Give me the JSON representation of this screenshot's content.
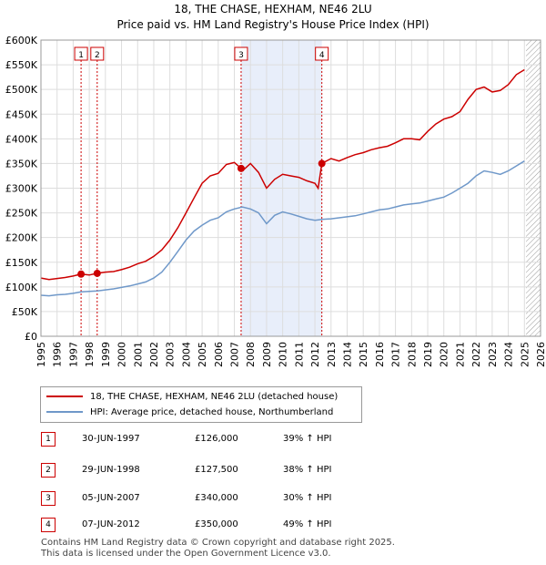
{
  "header": {
    "title": "18, THE CHASE, HEXHAM, NE46 2LU",
    "subtitle": "Price paid vs. HM Land Registry's House Price Index (HPI)"
  },
  "chart_data": {
    "type": "line",
    "title": "18, THE CHASE, HEXHAM, NE46 2LU",
    "subtitle": "Price paid vs. HM Land Registry's House Price Index (HPI)",
    "xlabel": "",
    "ylabel": "",
    "xlim": [
      1995,
      2026
    ],
    "ylim": [
      0,
      600000
    ],
    "x_ticks": [
      "1995",
      "1996",
      "1997",
      "1998",
      "1999",
      "2000",
      "2001",
      "2002",
      "2003",
      "2004",
      "2005",
      "2006",
      "2007",
      "2008",
      "2009",
      "2010",
      "2011",
      "2012",
      "2013",
      "2014",
      "2015",
      "2016",
      "2017",
      "2018",
      "2019",
      "2020",
      "2021",
      "2022",
      "2023",
      "2024",
      "2025",
      "2026"
    ],
    "y_ticks": [
      {
        "value": 0,
        "label": "£0"
      },
      {
        "value": 50000,
        "label": "£50K"
      },
      {
        "value": 100000,
        "label": "£100K"
      },
      {
        "value": 150000,
        "label": "£150K"
      },
      {
        "value": 200000,
        "label": "£200K"
      },
      {
        "value": 250000,
        "label": "£250K"
      },
      {
        "value": 300000,
        "label": "£300K"
      },
      {
        "value": 350000,
        "label": "£350K"
      },
      {
        "value": 400000,
        "label": "£400K"
      },
      {
        "value": 450000,
        "label": "£450K"
      },
      {
        "value": 500000,
        "label": "£500K"
      },
      {
        "value": 550000,
        "label": "£550K"
      },
      {
        "value": 600000,
        "label": "£600K"
      }
    ],
    "grid": true,
    "shaded_region": [
      2007.42,
      2012.43
    ],
    "hatched_from": 2025.1,
    "series": [
      {
        "name": "18, THE CHASE, HEXHAM, NE46 2LU (detached house)",
        "color": "#cc0000",
        "x": [
          1995.0,
          1995.5,
          1996.0,
          1996.5,
          1997.0,
          1997.49,
          1998.0,
          1998.49,
          1999.0,
          1999.5,
          2000.0,
          2000.5,
          2001.0,
          2001.5,
          2002.0,
          2002.5,
          2003.0,
          2003.5,
          2004.0,
          2004.5,
          2005.0,
          2005.5,
          2006.0,
          2006.5,
          2007.0,
          2007.42,
          2007.6,
          2008.0,
          2008.5,
          2009.0,
          2009.5,
          2010.0,
          2010.5,
          2011.0,
          2011.5,
          2012.0,
          2012.2,
          2012.43,
          2013.0,
          2013.5,
          2014.0,
          2014.5,
          2015.0,
          2015.5,
          2016.0,
          2016.5,
          2017.0,
          2017.5,
          2018.0,
          2018.5,
          2019.0,
          2019.5,
          2020.0,
          2020.5,
          2021.0,
          2021.5,
          2022.0,
          2022.5,
          2023.0,
          2023.5,
          2024.0,
          2024.5,
          2025.0
        ],
        "values": [
          118000,
          115000,
          117000,
          119000,
          122000,
          126000,
          124000,
          127500,
          130000,
          131000,
          135000,
          140000,
          147000,
          152000,
          162000,
          175000,
          195000,
          220000,
          250000,
          280000,
          310000,
          325000,
          330000,
          348000,
          352000,
          340000,
          338000,
          350000,
          332000,
          300000,
          318000,
          328000,
          325000,
          322000,
          315000,
          310000,
          300000,
          350000,
          360000,
          355000,
          362000,
          368000,
          372000,
          378000,
          382000,
          385000,
          392000,
          400000,
          400000,
          398000,
          415000,
          430000,
          440000,
          445000,
          455000,
          480000,
          500000,
          505000,
          495000,
          498000,
          510000,
          530000,
          540000
        ]
      },
      {
        "name": "HPI: Average price, detached house, Northumberland",
        "color": "#6f98c9",
        "x": [
          1995.0,
          1995.5,
          1996.0,
          1996.5,
          1997.0,
          1997.5,
          1998.0,
          1998.5,
          1999.0,
          1999.5,
          2000.0,
          2000.5,
          2001.0,
          2001.5,
          2002.0,
          2002.5,
          2003.0,
          2003.5,
          2004.0,
          2004.5,
          2005.0,
          2005.5,
          2006.0,
          2006.5,
          2007.0,
          2007.5,
          2008.0,
          2008.5,
          2009.0,
          2009.5,
          2010.0,
          2010.5,
          2011.0,
          2011.5,
          2012.0,
          2012.5,
          2013.0,
          2013.5,
          2014.0,
          2014.5,
          2015.0,
          2015.5,
          2016.0,
          2016.5,
          2017.0,
          2017.5,
          2018.0,
          2018.5,
          2019.0,
          2019.5,
          2020.0,
          2020.5,
          2021.0,
          2021.5,
          2022.0,
          2022.5,
          2023.0,
          2023.5,
          2024.0,
          2024.5,
          2025.0
        ],
        "values": [
          83000,
          82000,
          84000,
          85000,
          87000,
          90000,
          91000,
          92000,
          94000,
          96000,
          99000,
          102000,
          106000,
          110000,
          118000,
          130000,
          150000,
          172000,
          195000,
          213000,
          225000,
          235000,
          240000,
          252000,
          258000,
          262000,
          258000,
          250000,
          228000,
          245000,
          252000,
          248000,
          243000,
          238000,
          235000,
          237000,
          238000,
          240000,
          242000,
          244000,
          248000,
          252000,
          256000,
          258000,
          262000,
          266000,
          268000,
          270000,
          274000,
          278000,
          282000,
          290000,
          300000,
          310000,
          325000,
          335000,
          332000,
          328000,
          335000,
          345000,
          355000
        ]
      }
    ],
    "sales": [
      {
        "id": "1",
        "x": 1997.49,
        "value": 126000
      },
      {
        "id": "2",
        "x": 1998.49,
        "value": 127500
      },
      {
        "id": "3",
        "x": 2007.42,
        "value": 340000
      },
      {
        "id": "4",
        "x": 2012.43,
        "value": 350000
      }
    ]
  },
  "legend": {
    "items": [
      {
        "label": "18, THE CHASE, HEXHAM, NE46 2LU (detached house)",
        "color": "#cc0000"
      },
      {
        "label": "HPI: Average price, detached house, Northumberland",
        "color": "#6f98c9"
      }
    ]
  },
  "transactions": [
    {
      "id": "1",
      "date": "30-JUN-1997",
      "price": "£126,000",
      "hpi": "39% ↑ HPI"
    },
    {
      "id": "2",
      "date": "29-JUN-1998",
      "price": "£127,500",
      "hpi": "38% ↑ HPI"
    },
    {
      "id": "3",
      "date": "05-JUN-2007",
      "price": "£340,000",
      "hpi": "30% ↑ HPI"
    },
    {
      "id": "4",
      "date": "07-JUN-2012",
      "price": "£350,000",
      "hpi": "49% ↑ HPI"
    }
  ],
  "footer": {
    "line1": "Contains HM Land Registry data © Crown copyright and database right 2025.",
    "line2": "This data is licensed under the Open Government Licence v3.0."
  }
}
